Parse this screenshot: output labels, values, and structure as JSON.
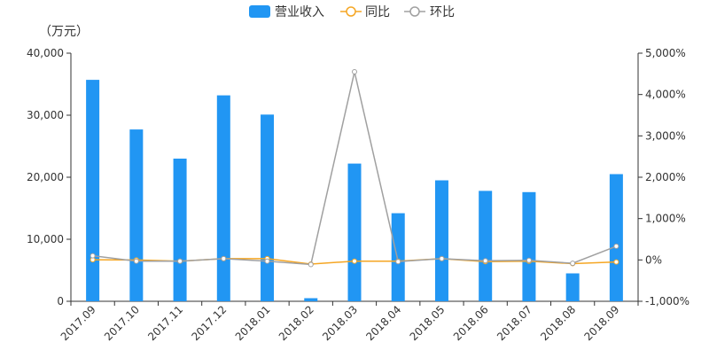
{
  "chart_data": {
    "type": "bar+line",
    "unit_label": "（万元）",
    "categories": [
      "2017.09",
      "2017.10",
      "2017.11",
      "2017.12",
      "2018.01",
      "2018.02",
      "2018.03",
      "2018.04",
      "2018.05",
      "2018.06",
      "2018.07",
      "2018.08",
      "2018.09"
    ],
    "left_axis": {
      "min": 0,
      "max": 40000,
      "ticks": [
        0,
        10000,
        20000,
        30000,
        40000
      ],
      "tick_labels": [
        "0",
        "10,000",
        "20,000",
        "30,000",
        "40,000"
      ]
    },
    "right_axis": {
      "min": -1000,
      "max": 5000,
      "ticks": [
        -1000,
        0,
        1000,
        2000,
        3000,
        4000,
        5000
      ],
      "tick_labels": [
        "-1,000%",
        "0%",
        "1,000%",
        "2,000%",
        "3,000%",
        "4,000%",
        "5,000%"
      ]
    },
    "series": [
      {
        "name": "营业收入",
        "kind": "bar",
        "axis": "left",
        "color": "#2196F3",
        "values": [
          35700,
          27700,
          23000,
          33200,
          30100,
          500,
          22200,
          14200,
          19500,
          17800,
          17600,
          4500,
          20500
        ]
      },
      {
        "name": "同比",
        "kind": "line",
        "axis": "right",
        "color": "#F5A623",
        "values": [
          5,
          0,
          -30,
          30,
          30,
          -100,
          -30,
          -30,
          30,
          -40,
          -30,
          -90,
          -50
        ]
      },
      {
        "name": "环比",
        "kind": "line",
        "axis": "right",
        "color": "#A0A0A0",
        "values": [
          100,
          -30,
          -30,
          30,
          -30,
          -110,
          4550,
          -40,
          30,
          -20,
          -10,
          -80,
          330
        ]
      }
    ],
    "legend_position": "top-center",
    "grid": false
  }
}
